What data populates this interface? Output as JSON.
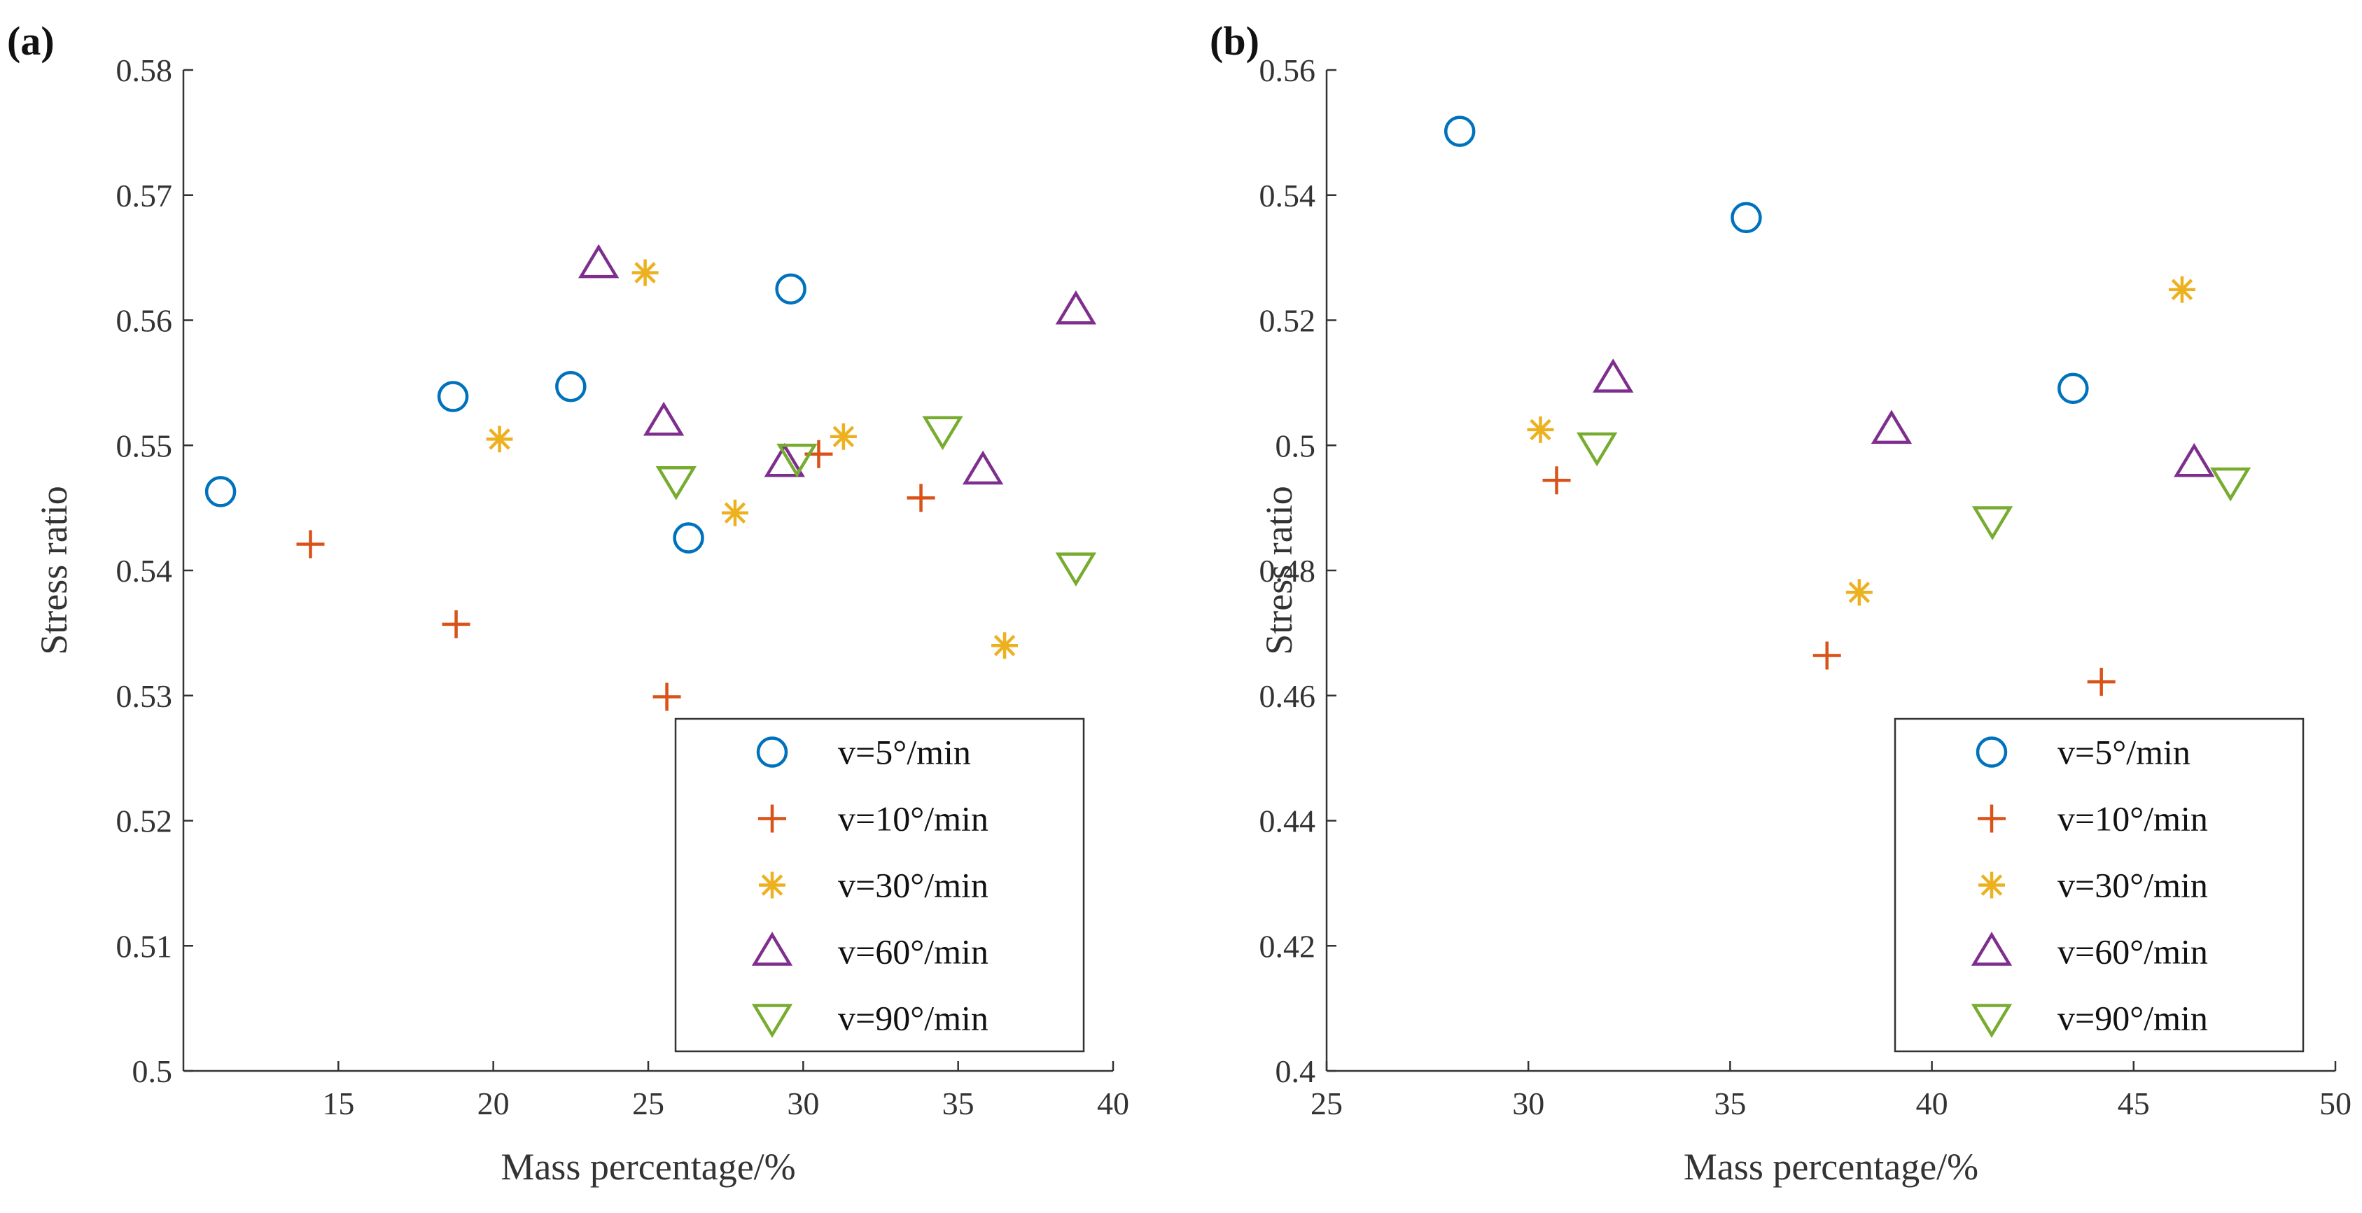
{
  "chart_data": [
    {
      "type": "scatter",
      "panel_label": "(a)",
      "xlabel": "Mass percentage/%",
      "ylabel": "Stress ratio",
      "xlim": [
        10,
        40
      ],
      "ylim": [
        0.5,
        0.58
      ],
      "xticks": [
        "15",
        "20",
        "25",
        "30",
        "35",
        "40"
      ],
      "yticks": [
        "0.5",
        "0.51",
        "0.52",
        "0.53",
        "0.54",
        "0.55",
        "0.56",
        "0.57",
        "0.58"
      ],
      "legend_position": "bottom-right",
      "series": [
        {
          "name": "v=5°/min",
          "marker": "circle",
          "color": "#0072BD",
          "points": [
            [
              11.2,
              0.5463
            ],
            [
              18.7,
              0.5539
            ],
            [
              22.5,
              0.5547
            ],
            [
              26.3,
              0.5426
            ],
            [
              29.6,
              0.5625
            ]
          ]
        },
        {
          "name": "v=10°/min",
          "marker": "plus",
          "color": "#D95319",
          "points": [
            [
              14.1,
              0.5421
            ],
            [
              18.8,
              0.5357
            ],
            [
              25.6,
              0.5299
            ],
            [
              30.5,
              0.5493
            ],
            [
              33.8,
              0.5458
            ]
          ]
        },
        {
          "name": "v=30°/min",
          "marker": "asterisk",
          "color": "#EDB120",
          "points": [
            [
              20.2,
              0.5505
            ],
            [
              24.9,
              0.5638
            ],
            [
              27.8,
              0.5446
            ],
            [
              31.3,
              0.5507
            ],
            [
              36.5,
              0.534
            ]
          ]
        },
        {
          "name": "v=60°/min",
          "marker": "triangle-up",
          "color": "#7E2F8E",
          "points": [
            [
              23.4,
              0.5645
            ],
            [
              25.5,
              0.5519
            ],
            [
              29.4,
              0.5486
            ],
            [
              35.8,
              0.548
            ],
            [
              38.8,
              0.5608
            ]
          ]
        },
        {
          "name": "v=90°/min",
          "marker": "triangle-down",
          "color": "#77AC30",
          "points": [
            [
              25.9,
              0.5472
            ],
            [
              29.8,
              0.549
            ],
            [
              34.5,
              0.5512
            ],
            [
              38.8,
              0.5403
            ]
          ]
        }
      ]
    },
    {
      "type": "scatter",
      "panel_label": "(b)",
      "xlabel": "Mass percentage/%",
      "ylabel": "Stress ratio",
      "xlim": [
        25,
        50
      ],
      "ylim": [
        0.4,
        0.56
      ],
      "xticks": [
        "25",
        "30",
        "35",
        "40",
        "45",
        "50"
      ],
      "yticks": [
        "0.4",
        "0.42",
        "0.44",
        "0.46",
        "0.48",
        "0.5",
        "0.52",
        "0.54",
        "0.56"
      ],
      "legend_position": "bottom-right",
      "series": [
        {
          "name": "v=5°/min",
          "marker": "circle",
          "color": "#0072BD",
          "points": [
            [
              28.3,
              0.5502
            ],
            [
              35.4,
              0.5364
            ],
            [
              43.5,
              0.5091
            ]
          ]
        },
        {
          "name": "v=10°/min",
          "marker": "plus",
          "color": "#D95319",
          "points": [
            [
              30.7,
              0.4944
            ],
            [
              37.4,
              0.4664
            ],
            [
              44.2,
              0.4622
            ]
          ]
        },
        {
          "name": "v=30°/min",
          "marker": "asterisk",
          "color": "#EDB120",
          "points": [
            [
              30.3,
              0.5025
            ],
            [
              38.2,
              0.4765
            ],
            [
              46.2,
              0.5249
            ]
          ]
        },
        {
          "name": "v=60°/min",
          "marker": "triangle-up",
          "color": "#7E2F8E",
          "points": [
            [
              32.1,
              0.5107
            ],
            [
              39.0,
              0.5025
            ],
            [
              46.5,
              0.4972
            ]
          ]
        },
        {
          "name": "v=90°/min",
          "marker": "triangle-down",
          "color": "#77AC30",
          "points": [
            [
              31.7,
              0.4998
            ],
            [
              41.5,
              0.488
            ],
            [
              47.4,
              0.4942
            ]
          ]
        }
      ]
    }
  ]
}
